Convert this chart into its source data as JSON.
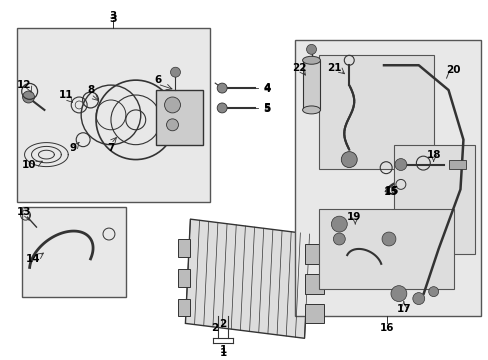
{
  "bg_color": "#ffffff",
  "box_fill": "#e8e8e8",
  "box_edge": "#555555",
  "label_color": "#000000",
  "line_color": "#333333",
  "fig_width": 4.89,
  "fig_height": 3.6,
  "dpi": 100
}
